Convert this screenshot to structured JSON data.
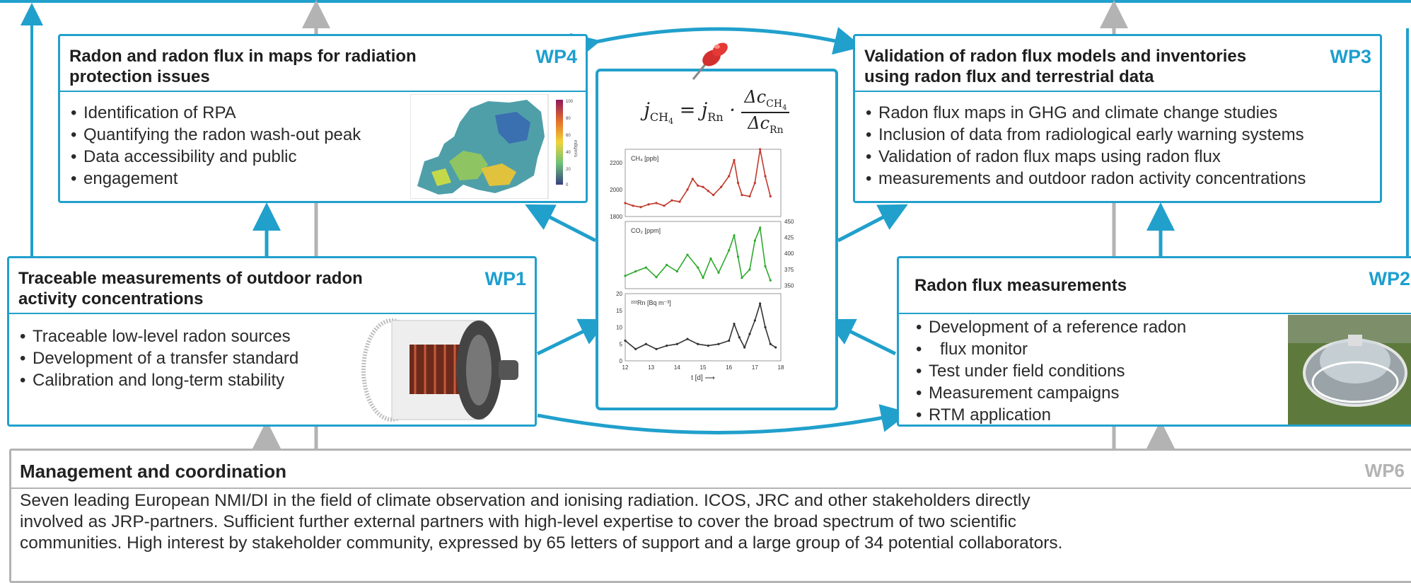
{
  "wp4": {
    "title_line1": "Radon and radon flux in maps for radiation",
    "title_line2": "protection issues",
    "tag": "WP4",
    "items": [
      "Identification of RPA",
      "Quantifying the radon wash-out peak",
      "Data accessibility and public",
      "engagement"
    ],
    "map_colorbar_ticks": [
      "100",
      "80",
      "60",
      "40",
      "20",
      "0"
    ],
    "map_colorbar_label": "mBq/m²s"
  },
  "wp3": {
    "title_line1": "Validation of radon flux models and inventories",
    "title_line2": "using radon flux and terrestrial data",
    "tag": "WP3",
    "items": [
      "Radon flux maps in GHG and climate change studies",
      "Inclusion of data from radiological early warning systems",
      "Validation of radon flux maps using radon flux",
      "measurements and outdoor radon activity concentrations"
    ]
  },
  "wp1": {
    "title_line1": "Traceable measurements of outdoor radon",
    "title_line2": "activity concentrations",
    "tag": "WP1",
    "items": [
      "Traceable low-level radon sources",
      "Development of a transfer standard",
      "Calibration and long-term stability"
    ]
  },
  "wp2": {
    "title": "Radon flux measurements",
    "tag": "WP2",
    "items": [
      "Development of a reference radon",
      "flux monitor",
      "Test under field conditions",
      "Measurement campaigns",
      "RTM application"
    ]
  },
  "wp6": {
    "title": "Management and coordination",
    "tag": "WP6",
    "lines": [
      "Seven leading European NMI/DI in the field of climate observation and ionising radiation. ICOS, JRC and other stakeholders directly",
      "involved as JRP-partners. Sufficient further external partners with high-level expertise to cover the broad spectrum of two scientific",
      "communities. High interest by stakeholder community, expressed by 65 letters of support and a large group of 34 potential collaborators."
    ]
  },
  "formula": {
    "lhs": "j",
    "lhs_sub": "CH",
    "lhs_sub_num": "4",
    "rhs_j": "j",
    "rhs_j_sub": "Rn",
    "numer": "Δc",
    "numer_sub": "CH",
    "numer_sub_num": "4",
    "denom": "Δc",
    "denom_sub": "Rn"
  },
  "colors": {
    "accent": "#21a0cc",
    "accent_dark": "#1d9fcf",
    "grey_box": "#b3b3b3",
    "ch4_series": "#c0392b",
    "co2_series": "#2eaa2e",
    "rn_series": "#333333"
  },
  "chart_data": [
    {
      "type": "line",
      "series": [
        {
          "name": "CH4 [ppb]",
          "x": [
            12,
            12.3,
            12.6,
            12.9,
            13.2,
            13.5,
            13.8,
            14.1,
            14.4,
            14.6,
            14.8,
            15.0,
            15.2,
            15.4,
            15.7,
            16.0,
            16.2,
            16.35,
            16.5,
            16.8,
            17.0,
            17.2,
            17.4,
            17.6
          ],
          "values": [
            1900,
            1880,
            1870,
            1890,
            1900,
            1880,
            1920,
            1910,
            2000,
            2080,
            2030,
            2020,
            1990,
            1960,
            2020,
            2100,
            2220,
            2050,
            1960,
            1950,
            2050,
            2300,
            2100,
            1950
          ]
        }
      ],
      "xlim": [
        12,
        18
      ],
      "ylim": [
        1800,
        2300
      ],
      "yticks": [
        "1800",
        "2000",
        "2200"
      ]
    },
    {
      "type": "line",
      "series": [
        {
          "name": "CO2 [ppm]",
          "x": [
            12,
            12.4,
            12.8,
            13.2,
            13.6,
            14.0,
            14.4,
            14.8,
            15.0,
            15.3,
            15.6,
            16.0,
            16.2,
            16.35,
            16.5,
            16.8,
            17.0,
            17.2,
            17.4,
            17.6
          ],
          "values": [
            365,
            372,
            378,
            363,
            382,
            372,
            398,
            378,
            362,
            392,
            370,
            405,
            428,
            395,
            362,
            375,
            420,
            440,
            380,
            358
          ]
        }
      ],
      "xlim": [
        12,
        18
      ],
      "ylim": [
        345,
        450
      ],
      "yticks": [
        "350",
        "375",
        "400",
        "425",
        "450"
      ]
    },
    {
      "type": "line",
      "series": [
        {
          "name": "222Rn [Bq m⁻³]",
          "x": [
            12,
            12.4,
            12.8,
            13.2,
            13.6,
            14.0,
            14.4,
            14.8,
            15.2,
            15.6,
            16.0,
            16.2,
            16.4,
            16.6,
            16.8,
            17.0,
            17.2,
            17.4,
            17.6,
            17.8
          ],
          "values": [
            6,
            3.5,
            5,
            3.5,
            4.5,
            5,
            6.5,
            5,
            4.5,
            5,
            6,
            11,
            7,
            4,
            8,
            12,
            17,
            10,
            5,
            4
          ]
        }
      ],
      "xlim": [
        12,
        18
      ],
      "ylim": [
        0,
        20
      ],
      "yticks": [
        "0",
        "5",
        "10",
        "15",
        "20"
      ],
      "xticks": [
        "12",
        "13",
        "14",
        "15",
        "16",
        "17",
        "18"
      ],
      "xlabel": "t [d] ⟶"
    }
  ],
  "panel_labels": {
    "ch4": "CH₄ [ppb]",
    "co2": "CO₂ [ppm]",
    "rn": "²²²Rn [Bq m⁻³]"
  }
}
